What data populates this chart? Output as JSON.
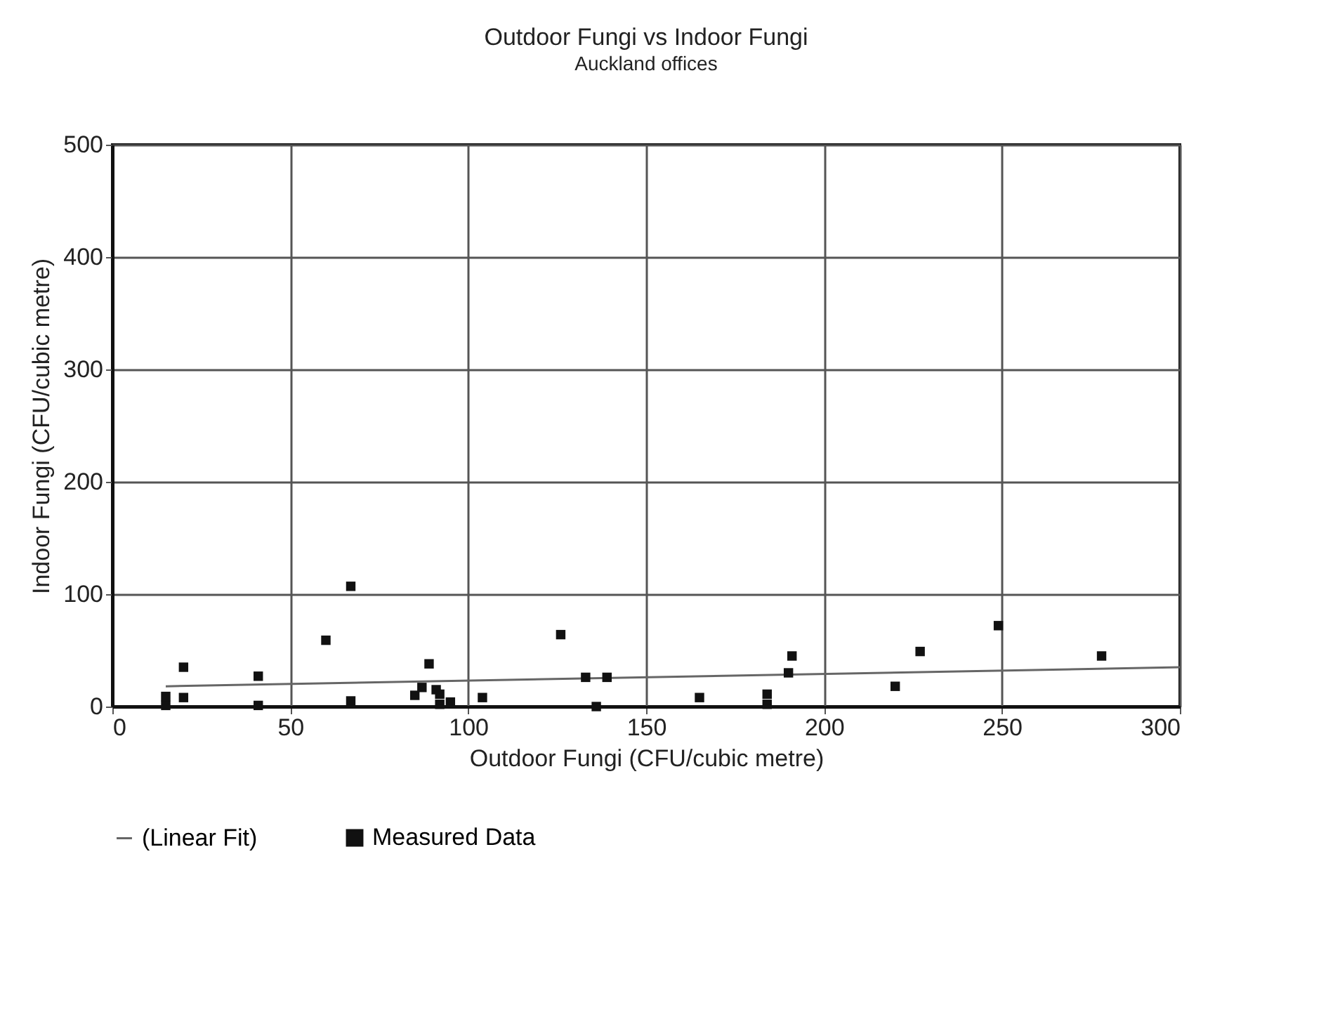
{
  "chart_data": {
    "type": "scatter",
    "title": "Outdoor Fungi vs Indoor Fungi",
    "subtitle": "Auckland offices",
    "xlabel": "Outdoor Fungi (CFU/cubic metre)",
    "ylabel": "Indoor Fungi  (CFU/cubic metre)",
    "xlim": [
      0,
      300
    ],
    "ylim": [
      0,
      500
    ],
    "xticks": [
      0,
      50,
      100,
      150,
      200,
      250,
      300
    ],
    "yticks": [
      0,
      100,
      200,
      300,
      400,
      500
    ],
    "grid": true,
    "legend": "bottom",
    "series": [
      {
        "name": "(Linear Fit)",
        "type": "line",
        "color": "#666666",
        "marker": "none",
        "x": [
          15,
          300
        ],
        "values": [
          18,
          35
        ]
      },
      {
        "name": "Measured Data",
        "type": "scatter",
        "color": "#111111",
        "marker": "square",
        "x": [
          15,
          15,
          20,
          20,
          41,
          41,
          60,
          67,
          67,
          85,
          87,
          89,
          91,
          92,
          92,
          95,
          104,
          126,
          133,
          136,
          139,
          165,
          184,
          184,
          190,
          191,
          220,
          227,
          249,
          278
        ],
        "values": [
          1,
          9,
          35,
          8,
          27,
          1,
          59,
          107,
          5,
          10,
          17,
          38,
          15,
          11,
          2,
          4,
          8,
          64,
          26,
          0,
          26,
          8,
          11,
          2,
          30,
          45,
          18,
          49,
          72,
          45
        ]
      }
    ]
  }
}
